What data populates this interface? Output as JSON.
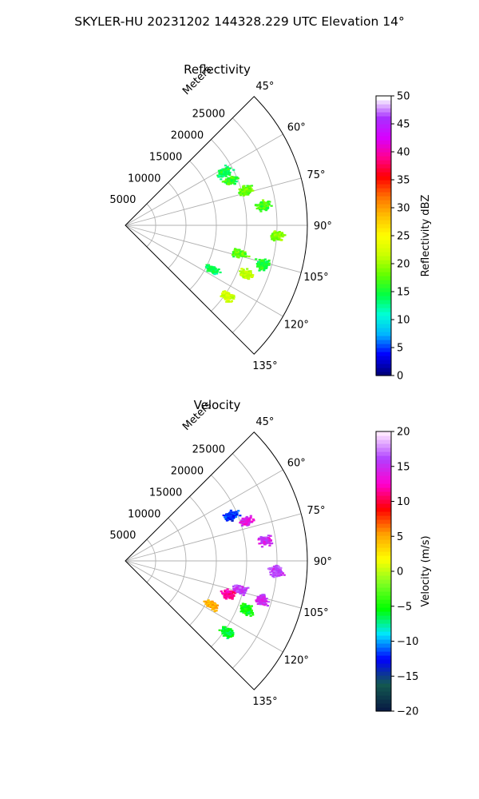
{
  "figure": {
    "suptitle": "SKYLER-HU  20231202  144328.229 UTC Elevation 14°"
  },
  "chart_data": [
    {
      "type": "scatter",
      "title": "Reflectivity",
      "r_axis_label": "Meters",
      "r_ticks": [
        5000,
        10000,
        15000,
        20000,
        25000
      ],
      "r_tick_labels": [
        "5000",
        "10000",
        "15000",
        "20000",
        "25000"
      ],
      "r_max": 30000,
      "theta_ticks": [
        45,
        60,
        75,
        90,
        105,
        120,
        135
      ],
      "theta_tick_labels": [
        "45°",
        "60°",
        "75°",
        "90°",
        "105°",
        "120°",
        "135°"
      ],
      "theta_range": [
        45,
        135
      ],
      "grid": true,
      "colorbar": {
        "label": "Reflectivity dBZ",
        "min": 0,
        "max": 50,
        "ticks": [
          0,
          5,
          10,
          15,
          20,
          25,
          30,
          35,
          40,
          45,
          50
        ],
        "tick_labels": [
          "0",
          "5",
          "10",
          "15",
          "20",
          "25",
          "30",
          "35",
          "40",
          "45",
          "50"
        ],
        "colormap": "NWSRef"
      },
      "clusters": [
        {
          "theta_deg": 67,
          "r_m": 19000,
          "value": 16
        },
        {
          "theta_deg": 74,
          "r_m": 20500,
          "value": 18
        },
        {
          "theta_deg": 82,
          "r_m": 23000,
          "value": 17
        },
        {
          "theta_deg": 94,
          "r_m": 25000,
          "value": 19
        },
        {
          "theta_deg": 104,
          "r_m": 19500,
          "value": 18
        },
        {
          "theta_deg": 106,
          "r_m": 23500,
          "value": 15
        },
        {
          "theta_deg": 117,
          "r_m": 16000,
          "value": 14
        },
        {
          "theta_deg": 112,
          "r_m": 21500,
          "value": 21
        },
        {
          "theta_deg": 125,
          "r_m": 20500,
          "value": 22
        },
        {
          "theta_deg": 62,
          "r_m": 18500,
          "value": 14
        }
      ]
    },
    {
      "type": "scatter",
      "title": "Velocity",
      "r_axis_label": "Meters",
      "r_ticks": [
        5000,
        10000,
        15000,
        20000,
        25000
      ],
      "r_tick_labels": [
        "5000",
        "10000",
        "15000",
        "20000",
        "25000"
      ],
      "r_max": 30000,
      "theta_ticks": [
        45,
        60,
        75,
        90,
        105,
        120,
        135
      ],
      "theta_tick_labels": [
        "45°",
        "60°",
        "75°",
        "90°",
        "105°",
        "120°",
        "135°"
      ],
      "theta_range": [
        45,
        135
      ],
      "grid": true,
      "colorbar": {
        "label": "Velocity (m/s)",
        "min": -20,
        "max": 20,
        "ticks": [
          -20,
          -15,
          -10,
          -5,
          0,
          5,
          10,
          15,
          20
        ],
        "tick_labels": [
          "−20",
          "−15",
          "−10",
          "−5",
          "0",
          "5",
          "10",
          "15",
          "20"
        ],
        "colormap": "NWSVel"
      },
      "clusters": [
        {
          "theta_deg": 67,
          "r_m": 19000,
          "value": -12
        },
        {
          "theta_deg": 72,
          "r_m": 21000,
          "value": 14
        },
        {
          "theta_deg": 82,
          "r_m": 23500,
          "value": 15
        },
        {
          "theta_deg": 94,
          "r_m": 25000,
          "value": 16
        },
        {
          "theta_deg": 104,
          "r_m": 19500,
          "value": 16
        },
        {
          "theta_deg": 108,
          "r_m": 18000,
          "value": 12
        },
        {
          "theta_deg": 106,
          "r_m": 23500,
          "value": 15
        },
        {
          "theta_deg": 117,
          "r_m": 16000,
          "value": 5
        },
        {
          "theta_deg": 112,
          "r_m": 21500,
          "value": -5
        },
        {
          "theta_deg": 125,
          "r_m": 20500,
          "value": -6
        }
      ]
    }
  ],
  "colors": {
    "ref_stops": [
      "#00007f",
      "#0000ff",
      "#00b4ff",
      "#00ffd8",
      "#00ff44",
      "#60ff00",
      "#c8ff00",
      "#ffff00",
      "#ffc000",
      "#ff7000",
      "#ff0000",
      "#ff0090",
      "#d800ff",
      "#a830ff",
      "#ffffff"
    ],
    "vel_stops": [
      "#081c44",
      "#135a50",
      "#0000ff",
      "#00e6ff",
      "#00ff00",
      "#7cff22",
      "#ffff00",
      "#ffa000",
      "#ff0000",
      "#ff00d0",
      "#b040ff",
      "#ffe6ff"
    ]
  }
}
